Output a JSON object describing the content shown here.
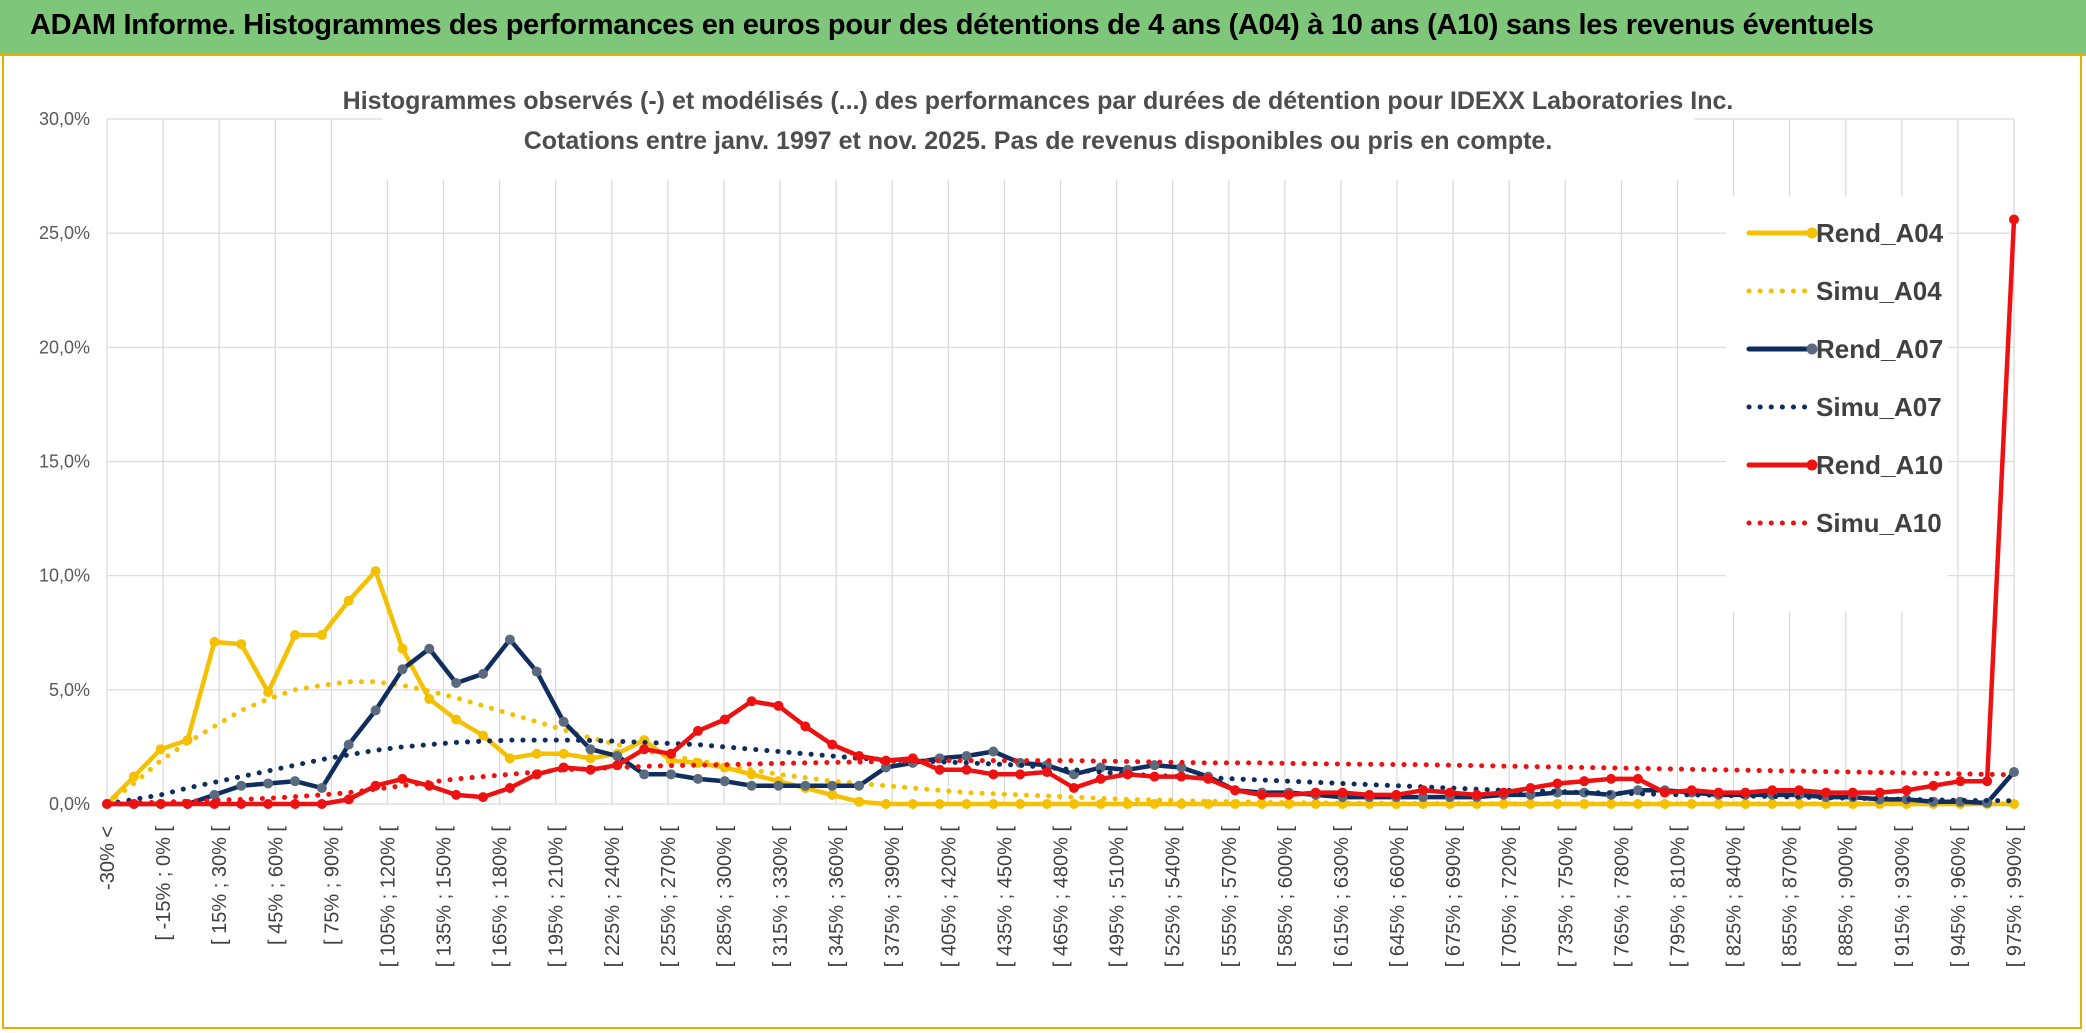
{
  "header": {
    "title": "ADAM Informe. Histogrammes des performances en euros pour des détentions de 4 ans (A04) à 10 ans (A10) sans les revenus éventuels"
  },
  "chart_data": {
    "type": "line",
    "title": "Histogrammes observés (-) et modélisés (...) des performances par durées de détention pour IDEXX Laboratories Inc.",
    "subtitle": "Cotations entre janv. 1997 et nov. 2025. Pas de revenus disponibles ou pris en compte.",
    "xlabel": "",
    "ylabel": "",
    "ylim": [
      0,
      30
    ],
    "yticks": [
      "0,0%",
      "5,0%",
      "10,0%",
      "15,0%",
      "20,0%",
      "25,0%",
      "30,0%"
    ],
    "grid": true,
    "legend_position": "right",
    "x_tick_labels": [
      "-30% <",
      "[ -15% ; 0% [",
      "[ 15% ; 30% [",
      "[ 45% ; 60% [",
      "[ 75% ; 90% [",
      "[ 105% ; 120% [",
      "[ 135% ; 150% [",
      "[ 165% ; 180% [",
      "[ 195% ; 210% [",
      "[ 225% ; 240% [",
      "[ 255% ; 270% [",
      "[ 285% ; 300% [",
      "[ 315% ; 330% [",
      "[ 345% ; 360% [",
      "[ 375% ; 390% [",
      "[ 405% ; 420% [",
      "[ 435% ; 450% [",
      "[ 465% ; 480% [",
      "[ 495% ; 510% [",
      "[ 525% ; 540% [",
      "[ 555% ; 570% [",
      "[ 585% ; 600% [",
      "[ 615% ; 630% [",
      "[ 645% ; 660% [",
      "[ 675% ; 690% [",
      "[ 705% ; 720% [",
      "[ 735% ; 750% [",
      "[ 765% ; 780% [",
      "[ 795% ; 810% [",
      "[ 825% ; 840% [",
      "[ 855% ; 870% [",
      "[ 885% ; 900% [",
      "[ 915% ; 930% [",
      "[ 945% ; 960% [",
      "[ 975% ; 990% ["
    ],
    "series": [
      {
        "name": "Rend_A04",
        "color": "#f5c000",
        "style": "solid",
        "values": [
          0,
          1.2,
          2.4,
          2.8,
          7.1,
          7.0,
          4.9,
          7.4,
          7.4,
          8.9,
          10.2,
          6.8,
          4.6,
          3.7,
          3.0,
          2.0,
          2.2,
          2.2,
          2.0,
          2.2,
          2.8,
          1.9,
          1.8,
          1.6,
          1.3,
          1.0,
          0.7,
          0.4,
          0.1,
          0,
          0,
          0,
          0,
          0,
          0,
          0,
          0,
          0,
          0,
          0,
          0,
          0,
          0,
          0,
          0,
          0,
          0,
          0,
          0,
          0,
          0,
          0,
          0,
          0,
          0,
          0,
          0,
          0,
          0,
          0,
          0,
          0,
          0,
          0,
          0,
          0,
          0,
          0,
          0,
          0,
          0,
          0
        ]
      },
      {
        "name": "Simu_A04",
        "color": "#f5c000",
        "style": "dotted",
        "values": [
          0,
          0.9,
          1.9,
          2.7,
          3.4,
          4.1,
          4.6,
          5.0,
          5.2,
          5.35,
          5.35,
          5.2,
          4.95,
          4.65,
          4.3,
          3.95,
          3.6,
          3.25,
          2.9,
          2.6,
          2.35,
          2.1,
          1.9,
          1.7,
          1.5,
          1.3,
          1.15,
          1.0,
          0.9,
          0.8,
          0.7,
          0.6,
          0.5,
          0.45,
          0.4,
          0.35,
          0.3,
          0.25,
          0.2,
          0.18,
          0.15,
          0.12,
          0.1,
          0.08,
          0.06,
          0.05,
          0.04,
          0.03,
          0.03,
          0.02,
          0.02,
          0.02,
          0.01,
          0.01,
          0.01,
          0.01,
          0.01,
          0.01,
          0.01,
          0.01,
          0.01,
          0.01,
          0.01,
          0.01,
          0.01,
          0.01,
          0.01,
          0.01,
          0.01,
          0.01,
          0.01,
          0.01
        ]
      },
      {
        "name": "Rend_A07",
        "color": "#0f2d5e",
        "style": "solid",
        "values": [
          0,
          0,
          0,
          0,
          0.4,
          0.8,
          0.9,
          1.0,
          0.7,
          2.6,
          4.1,
          5.9,
          6.8,
          5.3,
          5.7,
          7.2,
          5.8,
          3.6,
          2.4,
          2.1,
          1.3,
          1.3,
          1.1,
          1.0,
          0.8,
          0.8,
          0.8,
          0.8,
          0.8,
          1.6,
          1.8,
          2.0,
          2.1,
          2.3,
          1.8,
          1.7,
          1.3,
          1.6,
          1.5,
          1.7,
          1.6,
          1.2,
          0.6,
          0.5,
          0.5,
          0.4,
          0.3,
          0.3,
          0.3,
          0.3,
          0.3,
          0.3,
          0.4,
          0.4,
          0.5,
          0.5,
          0.4,
          0.6,
          0.6,
          0.5,
          0.4,
          0.4,
          0.4,
          0.4,
          0.3,
          0.3,
          0.2,
          0.2,
          0.1,
          0.1,
          0.05,
          1.4
        ]
      },
      {
        "name": "Simu_A07",
        "color": "#0f2d5e",
        "style": "dotted",
        "values": [
          0,
          0.2,
          0.4,
          0.7,
          0.95,
          1.2,
          1.45,
          1.7,
          1.95,
          2.15,
          2.35,
          2.5,
          2.6,
          2.7,
          2.75,
          2.8,
          2.8,
          2.8,
          2.78,
          2.75,
          2.7,
          2.65,
          2.6,
          2.5,
          2.4,
          2.3,
          2.2,
          2.1,
          2.0,
          1.95,
          1.9,
          1.85,
          1.8,
          1.75,
          1.7,
          1.6,
          1.5,
          1.4,
          1.3,
          1.25,
          1.2,
          1.15,
          1.1,
          1.05,
          1.0,
          0.95,
          0.9,
          0.85,
          0.8,
          0.75,
          0.7,
          0.65,
          0.6,
          0.58,
          0.55,
          0.5,
          0.48,
          0.45,
          0.42,
          0.4,
          0.38,
          0.35,
          0.33,
          0.3,
          0.28,
          0.25,
          0.23,
          0.2,
          0.18,
          0.16,
          0.15,
          0.14
        ]
      },
      {
        "name": "Rend_A10",
        "color": "#ee1111",
        "style": "solid",
        "values": [
          0,
          0,
          0,
          0,
          0,
          0,
          0,
          0,
          0,
          0.2,
          0.8,
          1.1,
          0.8,
          0.4,
          0.3,
          0.7,
          1.3,
          1.6,
          1.5,
          1.7,
          2.4,
          2.2,
          3.2,
          3.7,
          4.5,
          4.3,
          3.4,
          2.6,
          2.1,
          1.9,
          2.0,
          1.5,
          1.5,
          1.3,
          1.3,
          1.4,
          0.7,
          1.1,
          1.3,
          1.2,
          1.2,
          1.1,
          0.6,
          0.4,
          0.4,
          0.5,
          0.5,
          0.4,
          0.4,
          0.6,
          0.5,
          0.4,
          0.5,
          0.7,
          0.9,
          1.0,
          1.1,
          1.1,
          0.5,
          0.6,
          0.5,
          0.5,
          0.6,
          0.6,
          0.5,
          0.5,
          0.5,
          0.6,
          0.8,
          1.0,
          1.0,
          25.6
        ]
      },
      {
        "name": "Simu_A10",
        "color": "#ee1111",
        "style": "dotted",
        "values": [
          0,
          0.04,
          0.08,
          0.12,
          0.16,
          0.2,
          0.25,
          0.32,
          0.4,
          0.5,
          0.65,
          0.8,
          0.95,
          1.1,
          1.2,
          1.3,
          1.4,
          1.5,
          1.55,
          1.6,
          1.65,
          1.68,
          1.7,
          1.72,
          1.75,
          1.78,
          1.8,
          1.82,
          1.84,
          1.86,
          1.88,
          1.9,
          1.9,
          1.9,
          1.9,
          1.9,
          1.9,
          1.88,
          1.86,
          1.84,
          1.82,
          1.8,
          1.8,
          1.8,
          1.78,
          1.76,
          1.75,
          1.74,
          1.73,
          1.72,
          1.7,
          1.68,
          1.66,
          1.64,
          1.62,
          1.6,
          1.58,
          1.56,
          1.54,
          1.52,
          1.5,
          1.48,
          1.46,
          1.44,
          1.42,
          1.4,
          1.38,
          1.36,
          1.34,
          1.32,
          1.3,
          1.28
        ]
      }
    ]
  }
}
